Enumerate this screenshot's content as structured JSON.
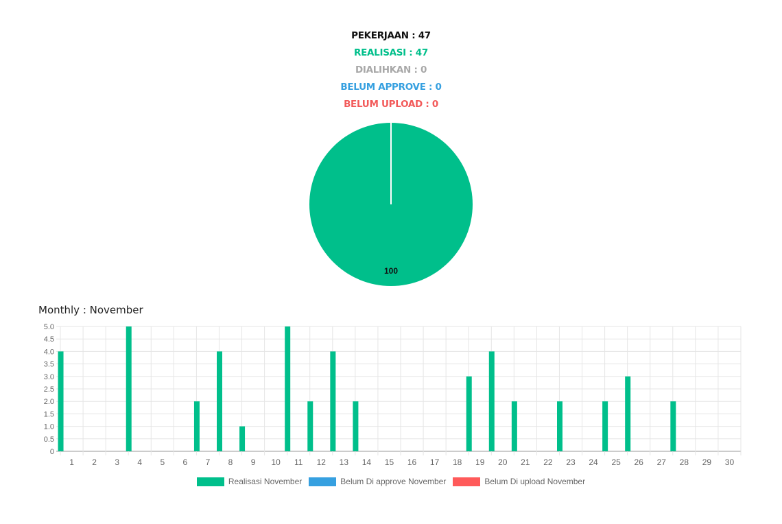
{
  "summary": {
    "pekerjaan": "PEKERJAAN : 47",
    "realisasi": "REALISASI : 47",
    "dialihkan": "DIALIHKAN : 0",
    "belum_approve": "BELUM APPROVE : 0",
    "belum_upload": "BELUM UPLOAD : 0"
  },
  "colors": {
    "realisasi": "#00bf8b",
    "belum_approve": "#36a0e0",
    "belum_upload": "#ff5a5a"
  },
  "monthly_title": "Monthly : November",
  "legend": [
    "Realisasi November",
    "Belum Di approve November",
    "Belum Di upload November"
  ],
  "chart_data": [
    {
      "type": "pie",
      "slices": [
        {
          "label": "Realisasi",
          "value": 100,
          "color": "#00bf8b"
        }
      ],
      "data_labels": [
        "100"
      ]
    },
    {
      "type": "bar",
      "categories": [
        "1",
        "2",
        "3",
        "4",
        "5",
        "6",
        "7",
        "8",
        "9",
        "10",
        "11",
        "12",
        "13",
        "14",
        "15",
        "16",
        "17",
        "18",
        "19",
        "20",
        "21",
        "22",
        "23",
        "24",
        "25",
        "26",
        "27",
        "28",
        "29",
        "30"
      ],
      "series": [
        {
          "name": "Realisasi November",
          "color": "#00bf8b",
          "values": [
            4,
            0,
            0,
            5,
            0,
            0,
            2,
            4,
            1,
            0,
            5,
            2,
            4,
            2,
            0,
            0,
            0,
            0,
            3,
            4,
            2,
            0,
            2,
            0,
            2,
            3,
            0,
            2,
            0,
            0
          ]
        },
        {
          "name": "Belum Di approve November",
          "color": "#36a0e0",
          "values": [
            0,
            0,
            0,
            0,
            0,
            0,
            0,
            0,
            0,
            0,
            0,
            0,
            0,
            0,
            0,
            0,
            0,
            0,
            0,
            0,
            0,
            0,
            0,
            0,
            0,
            0,
            0,
            0,
            0,
            0
          ]
        },
        {
          "name": "Belum Di upload November",
          "color": "#ff5a5a",
          "values": [
            0,
            0,
            0,
            0,
            0,
            0,
            0,
            0,
            0,
            0,
            0,
            0,
            0,
            0,
            0,
            0,
            0,
            0,
            0,
            0,
            0,
            0,
            0,
            0,
            0,
            0,
            0,
            0,
            0,
            0
          ]
        }
      ],
      "yticks": [
        "5.0",
        "4.5",
        "4.0",
        "3.5",
        "3.0",
        "2.5",
        "2.0",
        "1.5",
        "1.0",
        "0.5",
        "0"
      ],
      "ylim": [
        0,
        5
      ],
      "grid": true,
      "legend_position": "bottom"
    }
  ]
}
